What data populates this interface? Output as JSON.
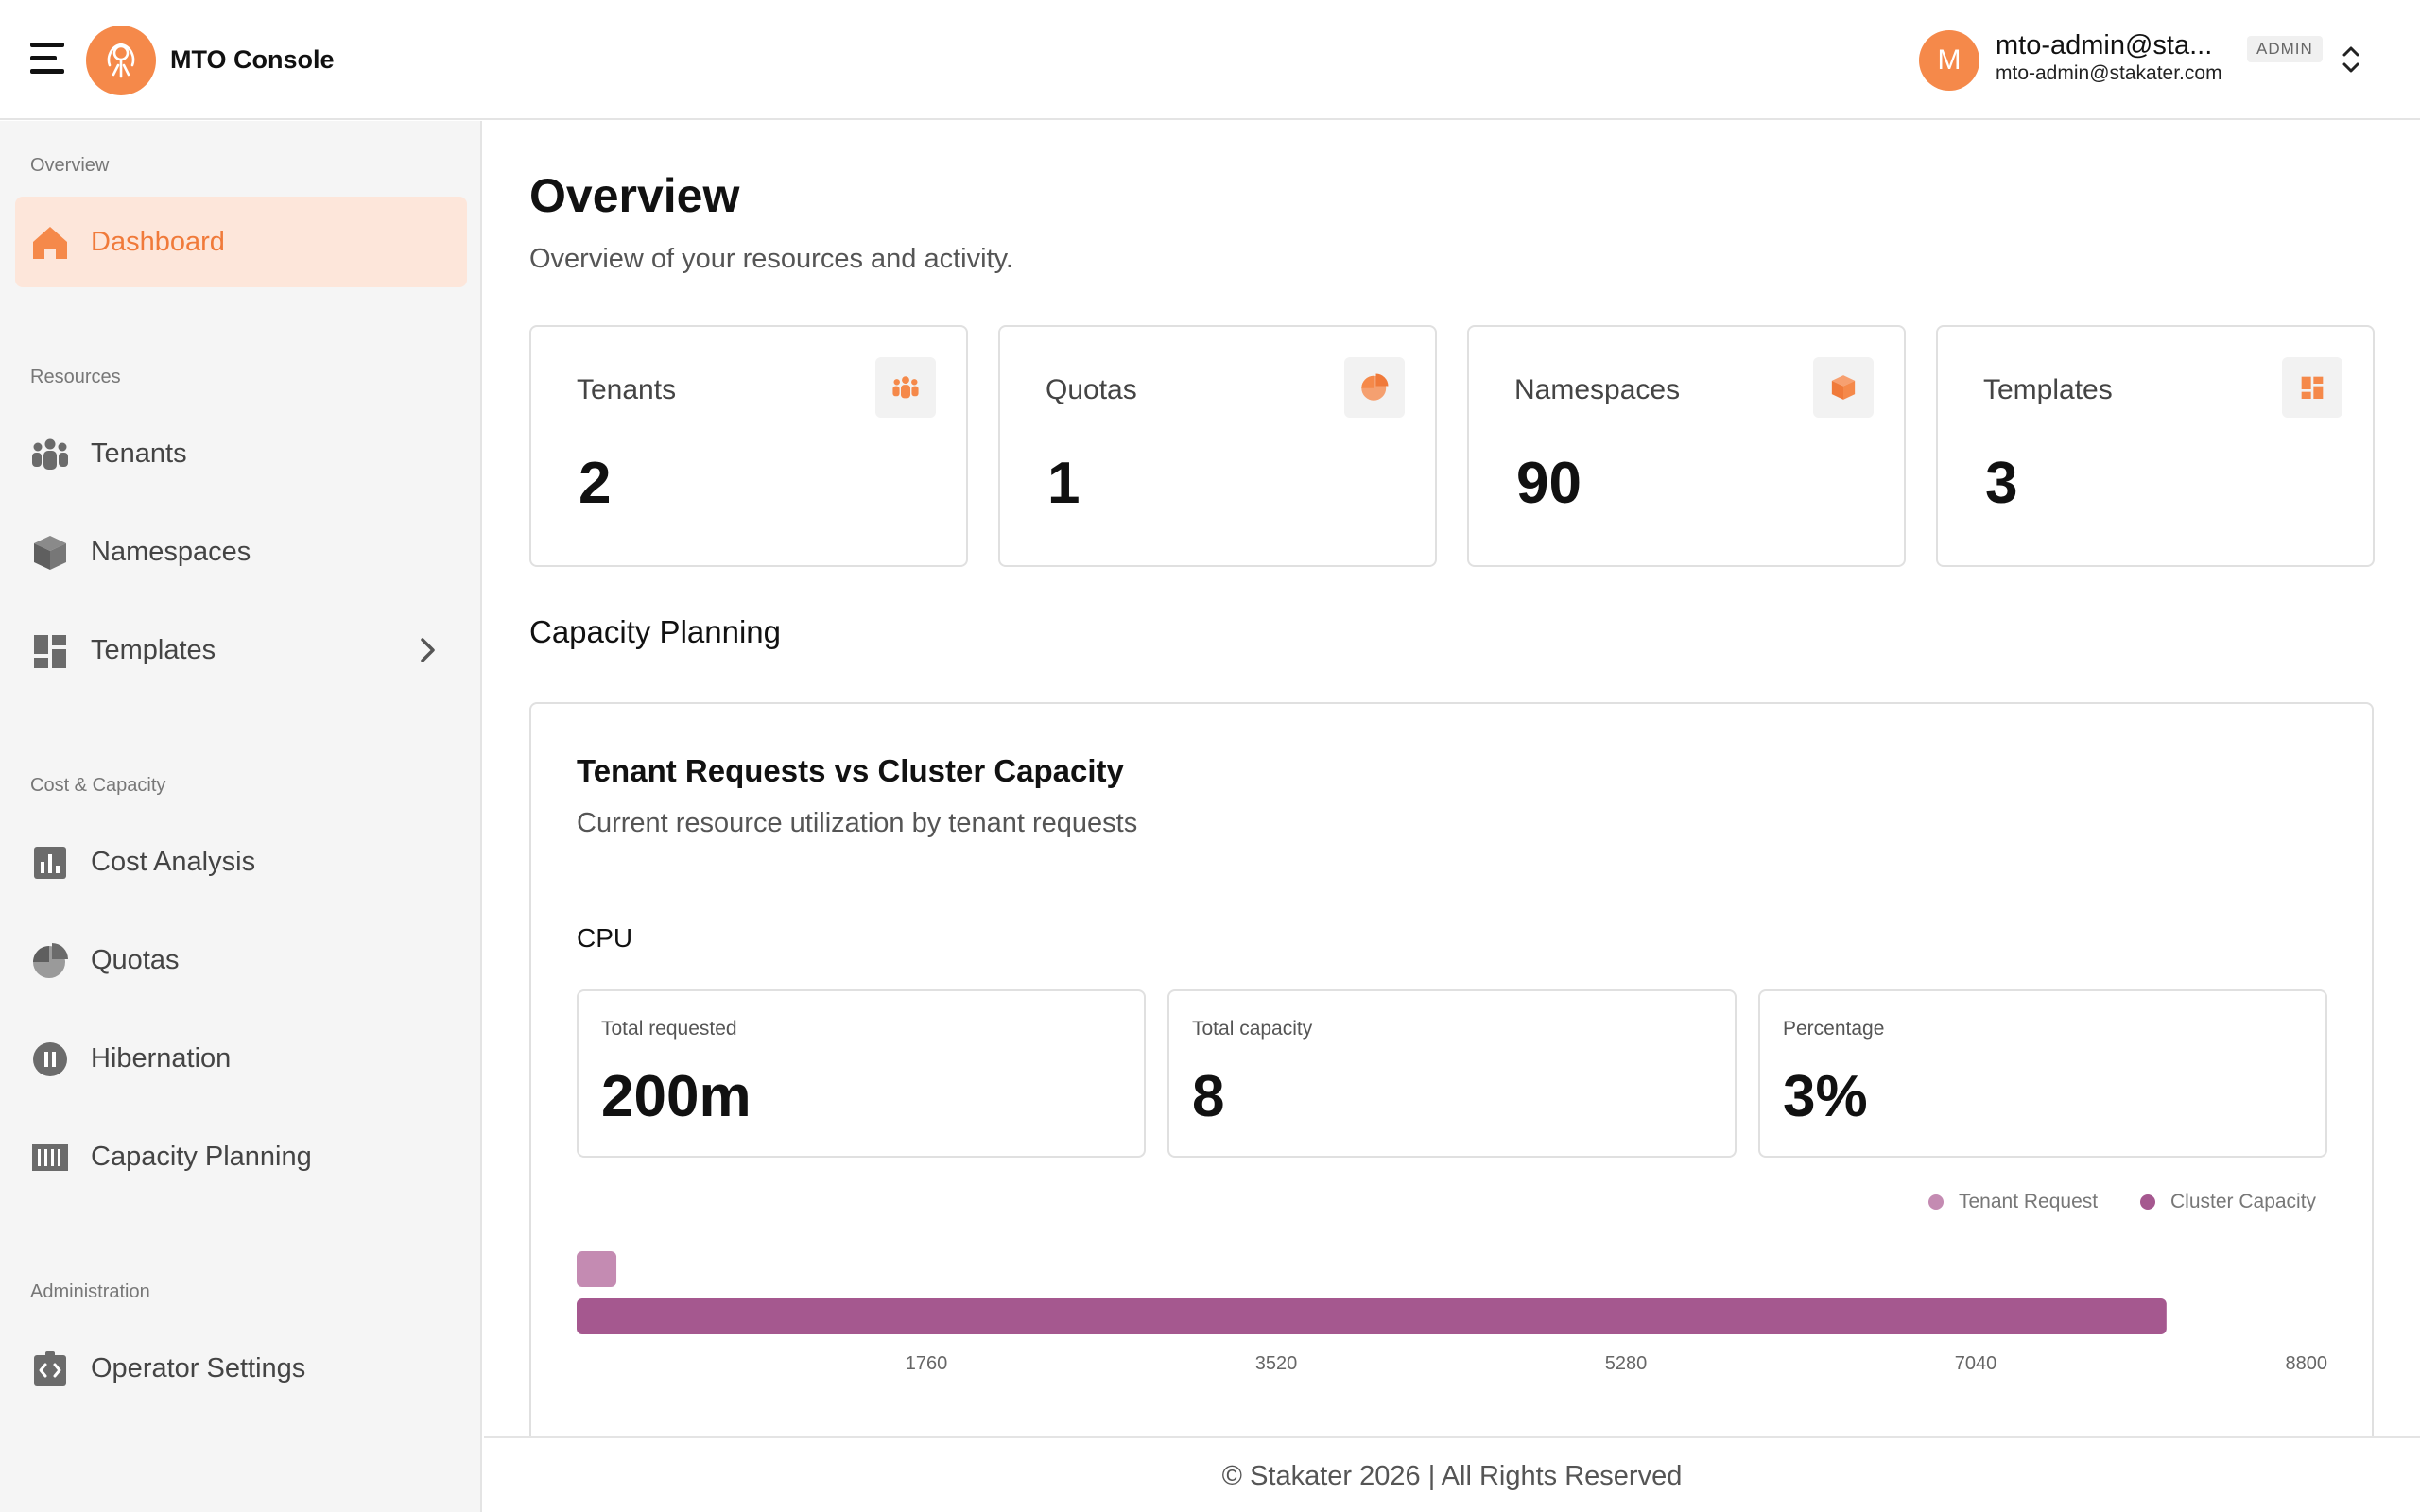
{
  "header": {
    "app_title": "MTO Console",
    "user": {
      "initial": "M",
      "name": "mto-admin@sta...",
      "email": "mto-admin@stakater.com",
      "role_badge": "ADMIN"
    }
  },
  "sidebar": {
    "sections": [
      {
        "label": "Overview"
      },
      {
        "label": "Resources"
      },
      {
        "label": "Cost & Capacity"
      },
      {
        "label": "Administration"
      }
    ],
    "items": [
      {
        "label": "Dashboard",
        "icon": "home-icon",
        "active": true
      },
      {
        "label": "Tenants",
        "icon": "group-icon"
      },
      {
        "label": "Namespaces",
        "icon": "cube-icon"
      },
      {
        "label": "Templates",
        "icon": "dashboard-grid-icon"
      },
      {
        "label": "Cost Analysis",
        "icon": "bar-chart-icon"
      },
      {
        "label": "Quotas",
        "icon": "pie-chart-icon"
      },
      {
        "label": "Hibernation",
        "icon": "pause-icon"
      },
      {
        "label": "Capacity Planning",
        "icon": "barcode-icon"
      },
      {
        "label": "Operator Settings",
        "icon": "settings-code-icon"
      }
    ]
  },
  "main": {
    "title": "Overview",
    "subtitle": "Overview of your resources and activity.",
    "stats": [
      {
        "label": "Tenants",
        "value": "2",
        "icon": "group-icon"
      },
      {
        "label": "Quotas",
        "value": "1",
        "icon": "pie-chart-icon"
      },
      {
        "label": "Namespaces",
        "value": "90",
        "icon": "cube-icon"
      },
      {
        "label": "Templates",
        "value": "3",
        "icon": "dashboard-grid-icon"
      }
    ],
    "section_title": "Capacity Planning",
    "capacity_card": {
      "title": "Tenant Requests vs Cluster Capacity",
      "subtitle": "Current resource utilization by tenant requests",
      "resource_label": "CPU",
      "metrics": [
        {
          "label": "Total requested",
          "value": "200m"
        },
        {
          "label": "Total capacity",
          "value": "8"
        },
        {
          "label": "Percentage",
          "value": "3%"
        }
      ]
    }
  },
  "chart_data": {
    "type": "bar",
    "orientation": "horizontal",
    "categories": [
      "CPU"
    ],
    "series": [
      {
        "name": "Tenant Request",
        "values": [
          200
        ],
        "color": "#c48bb2"
      },
      {
        "name": "Cluster Capacity",
        "values": [
          8000
        ],
        "color": "#a5588f"
      }
    ],
    "xlim": [
      0,
      8800
    ],
    "xticks": [
      "1760",
      "3520",
      "5280",
      "7040",
      "8800"
    ],
    "legend_position": "top-right",
    "grid": false
  },
  "footer": {
    "text": "© Stakater 2026 | All Rights Reserved"
  },
  "colors": {
    "accent": "#f5894a",
    "active_bg": "#fde6da",
    "tenant_request": "#c48bb2",
    "cluster_capacity": "#a5588f"
  }
}
